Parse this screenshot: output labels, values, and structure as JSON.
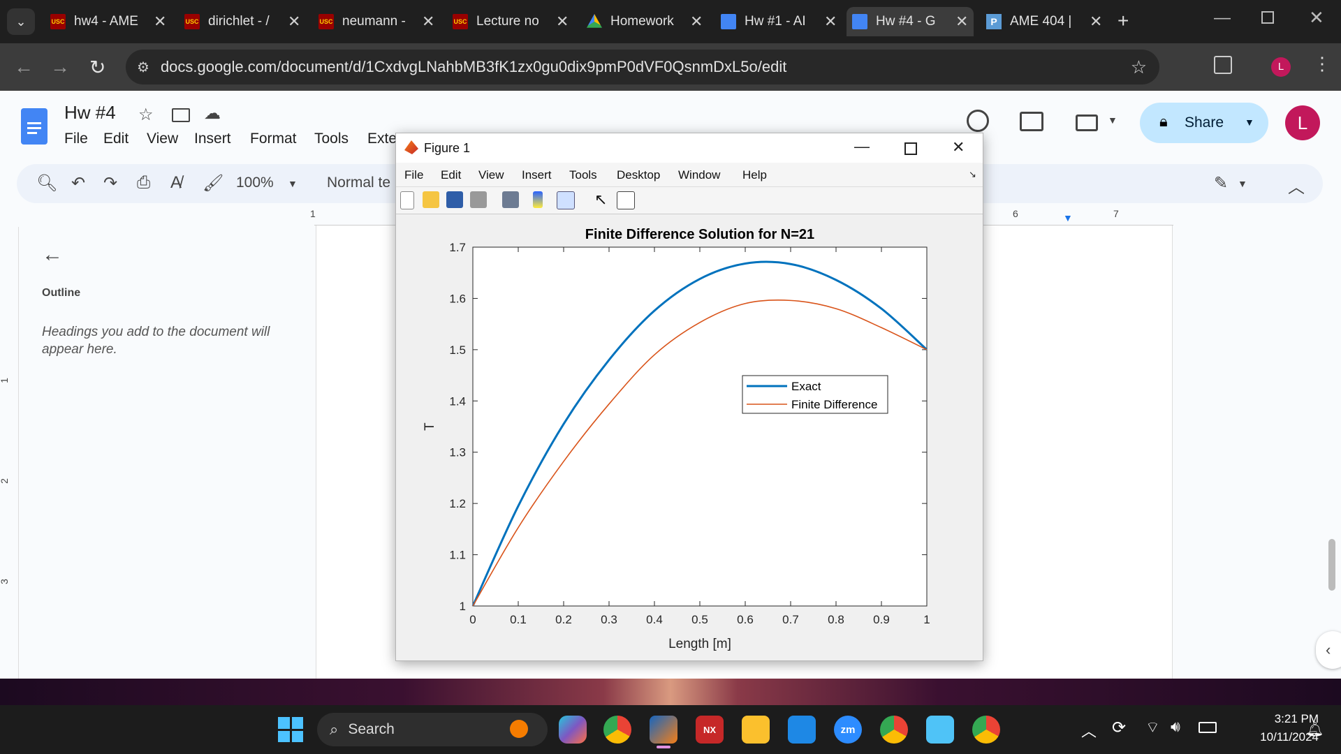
{
  "browser": {
    "tabs": [
      {
        "title": "hw4 - AME",
        "favicon": "usc"
      },
      {
        "title": "dirichlet - /",
        "favicon": "usc"
      },
      {
        "title": "neumann -",
        "favicon": "usc"
      },
      {
        "title": "Lecture no",
        "favicon": "usc"
      },
      {
        "title": "Homework",
        "favicon": "drive"
      },
      {
        "title": "Hw #1 - AI",
        "favicon": "docs"
      },
      {
        "title": "Hw #4 - G",
        "favicon": "docs",
        "active": true
      },
      {
        "title": "AME 404 |",
        "favicon": "p"
      }
    ],
    "url": "docs.google.com/document/d/1CxdvgLNahbMB3fK1zx0gu0dix9pmP0dVF0QsnmDxL5o/edit",
    "profile_initial": "L"
  },
  "docs": {
    "title": "Hw #4",
    "menu": [
      "File",
      "Edit",
      "View",
      "Insert",
      "Format",
      "Tools",
      "Exte"
    ],
    "zoom": "100%",
    "style": "Normal te",
    "share_label": "Share",
    "avatar_initial": "L",
    "outline": {
      "heading": "Outline",
      "empty_text": "Headings you add to the document will appear here."
    },
    "ruler_numbers": [
      "1",
      "6",
      "7"
    ],
    "left_ruler_numbers": [
      "1",
      "2",
      "3"
    ]
  },
  "figure": {
    "window_title": "Figure 1",
    "menu": [
      "File",
      "Edit",
      "View",
      "Insert",
      "Tools",
      "Desktop",
      "Window",
      "Help"
    ]
  },
  "chart_data": {
    "type": "line",
    "title": "Finite Difference Solution for N=21",
    "xlabel": "Length [m]",
    "ylabel": "T",
    "xlim": [
      0,
      1
    ],
    "ylim": [
      1,
      1.7
    ],
    "xticks": [
      "0",
      "0.1",
      "0.2",
      "0.3",
      "0.4",
      "0.5",
      "0.6",
      "0.7",
      "0.8",
      "0.9",
      "1"
    ],
    "yticks": [
      "1",
      "1.1",
      "1.2",
      "1.3",
      "1.4",
      "1.5",
      "1.6",
      "1.7"
    ],
    "grid": false,
    "legend_position": "right-middle",
    "x": [
      0,
      0.1,
      0.2,
      0.3,
      0.4,
      0.5,
      0.6,
      0.7,
      0.8,
      0.9,
      1.0
    ],
    "series": [
      {
        "name": "Exact",
        "color": "#0072bd",
        "values": [
          1.0,
          1.195,
          1.355,
          1.48,
          1.576,
          1.638,
          1.668,
          1.667,
          1.636,
          1.58,
          1.5
        ]
      },
      {
        "name": "Finite Difference",
        "color": "#d95319",
        "values": [
          1.0,
          1.153,
          1.282,
          1.394,
          1.49,
          1.553,
          1.59,
          1.596,
          1.58,
          1.543,
          1.5
        ]
      }
    ]
  },
  "taskbar": {
    "search_label": "Search",
    "time": "3:21 PM",
    "date": "10/11/2024"
  }
}
